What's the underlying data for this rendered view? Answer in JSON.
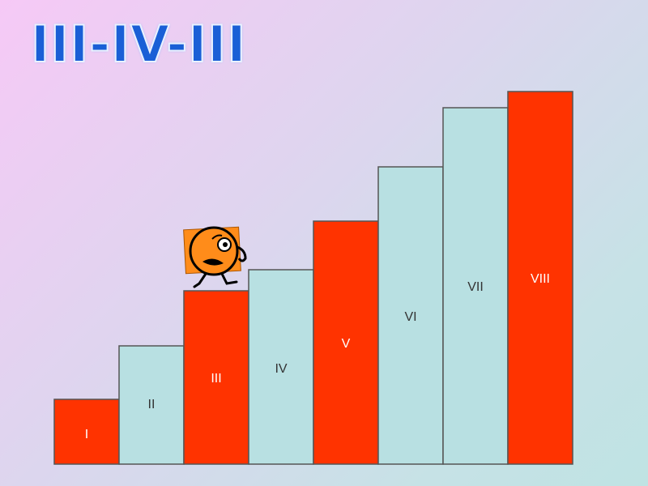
{
  "title": "III-IV-III",
  "steps": [
    {
      "label": "I",
      "level": 1,
      "color": "#ff3300"
    },
    {
      "label": "II",
      "level": 2,
      "color": "#b8e0e2"
    },
    {
      "label": "III",
      "level": 3,
      "color": "#ff3300"
    },
    {
      "label": "IV",
      "level": 4,
      "color": "#b8e0e2"
    },
    {
      "label": "V",
      "level": 5,
      "color": "#ff3300"
    },
    {
      "label": "VI",
      "level": 6,
      "color": "#b8e0e2"
    },
    {
      "label": "VII",
      "level": 7,
      "color": "#b8e0e2"
    },
    {
      "label": "VIII",
      "level": 8,
      "color": "#ff3300"
    }
  ],
  "character": {
    "icon": "worried-face-character-icon",
    "on_step": "III",
    "color": "#ff8c1a"
  },
  "colors": {
    "red": "#ff3300",
    "light": "#b8e0e2",
    "outline": "#555555",
    "title": "#1a5fd6"
  }
}
